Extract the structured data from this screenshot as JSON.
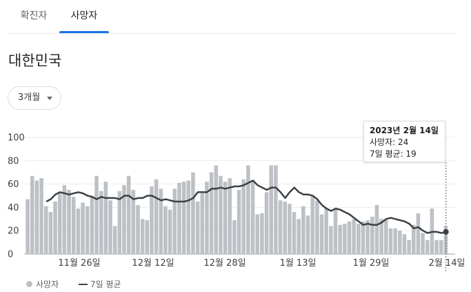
{
  "tabs": [
    {
      "label": "확진자",
      "selected": false
    },
    {
      "label": "사망자",
      "selected": true
    }
  ],
  "region": "대한민국",
  "period_select": {
    "value": "3개월"
  },
  "tooltip": {
    "date": "2023년 2월 14일",
    "deaths_line": "사망자: 24",
    "avg_line": "7일 평균: 19"
  },
  "legend": {
    "bars": "사망자",
    "line": "7일 평균"
  },
  "colors": {
    "bar": "#bdc1c6",
    "line": "#3c4043",
    "accent": "#1a73e8"
  },
  "chart_data": {
    "type": "bar",
    "y_ticks": [
      "0",
      "20",
      "40",
      "60",
      "80",
      "100"
    ],
    "ylim": [
      0,
      100
    ],
    "x_tick_labels": [
      "11월 26일",
      "12월 12일",
      "12월 28일",
      "1월 13일",
      "1월 29일",
      "2월 14일"
    ],
    "series": [
      {
        "name": "사망자",
        "values": [
          47,
          67,
          63,
          65,
          41,
          36,
          45,
          52,
          59,
          55,
          49,
          39,
          44,
          41,
          50,
          67,
          54,
          62,
          46,
          24,
          54,
          59,
          67,
          55,
          42,
          30,
          29,
          58,
          64,
          56,
          41,
          38,
          56,
          61,
          62,
          63,
          70,
          45,
          52,
          62,
          70,
          76,
          67,
          62,
          65,
          29,
          55,
          64,
          76,
          62,
          34,
          35,
          53,
          76,
          76,
          46,
          45,
          43,
          36,
          30,
          41,
          33,
          49,
          46,
          34,
          39,
          24,
          39,
          25,
          26,
          28,
          30,
          26,
          28,
          29,
          32,
          42,
          30,
          29,
          22,
          22,
          20,
          17,
          12,
          25,
          35,
          18,
          12,
          39,
          12,
          12,
          24
        ]
      },
      {
        "name": "7일 평균",
        "values": [
          45,
          47,
          51,
          53,
          52,
          51,
          52,
          53,
          52,
          50,
          49,
          47,
          49,
          48,
          48,
          48,
          47,
          50,
          50,
          47,
          48,
          48,
          50,
          50,
          48,
          46,
          47,
          46,
          45,
          45,
          45,
          46,
          48,
          53,
          53,
          53,
          56,
          56,
          57,
          56,
          57,
          58,
          58,
          59,
          61,
          63,
          59,
          57,
          55,
          57,
          57,
          53,
          48,
          53,
          57,
          53,
          51,
          51,
          50,
          47,
          42,
          39,
          37,
          39,
          38,
          36,
          34,
          31,
          28,
          25,
          26,
          25,
          25,
          27,
          30,
          31,
          30,
          29,
          28,
          26,
          22,
          23,
          20,
          18,
          19,
          19,
          18,
          19
        ]
      }
    ]
  }
}
